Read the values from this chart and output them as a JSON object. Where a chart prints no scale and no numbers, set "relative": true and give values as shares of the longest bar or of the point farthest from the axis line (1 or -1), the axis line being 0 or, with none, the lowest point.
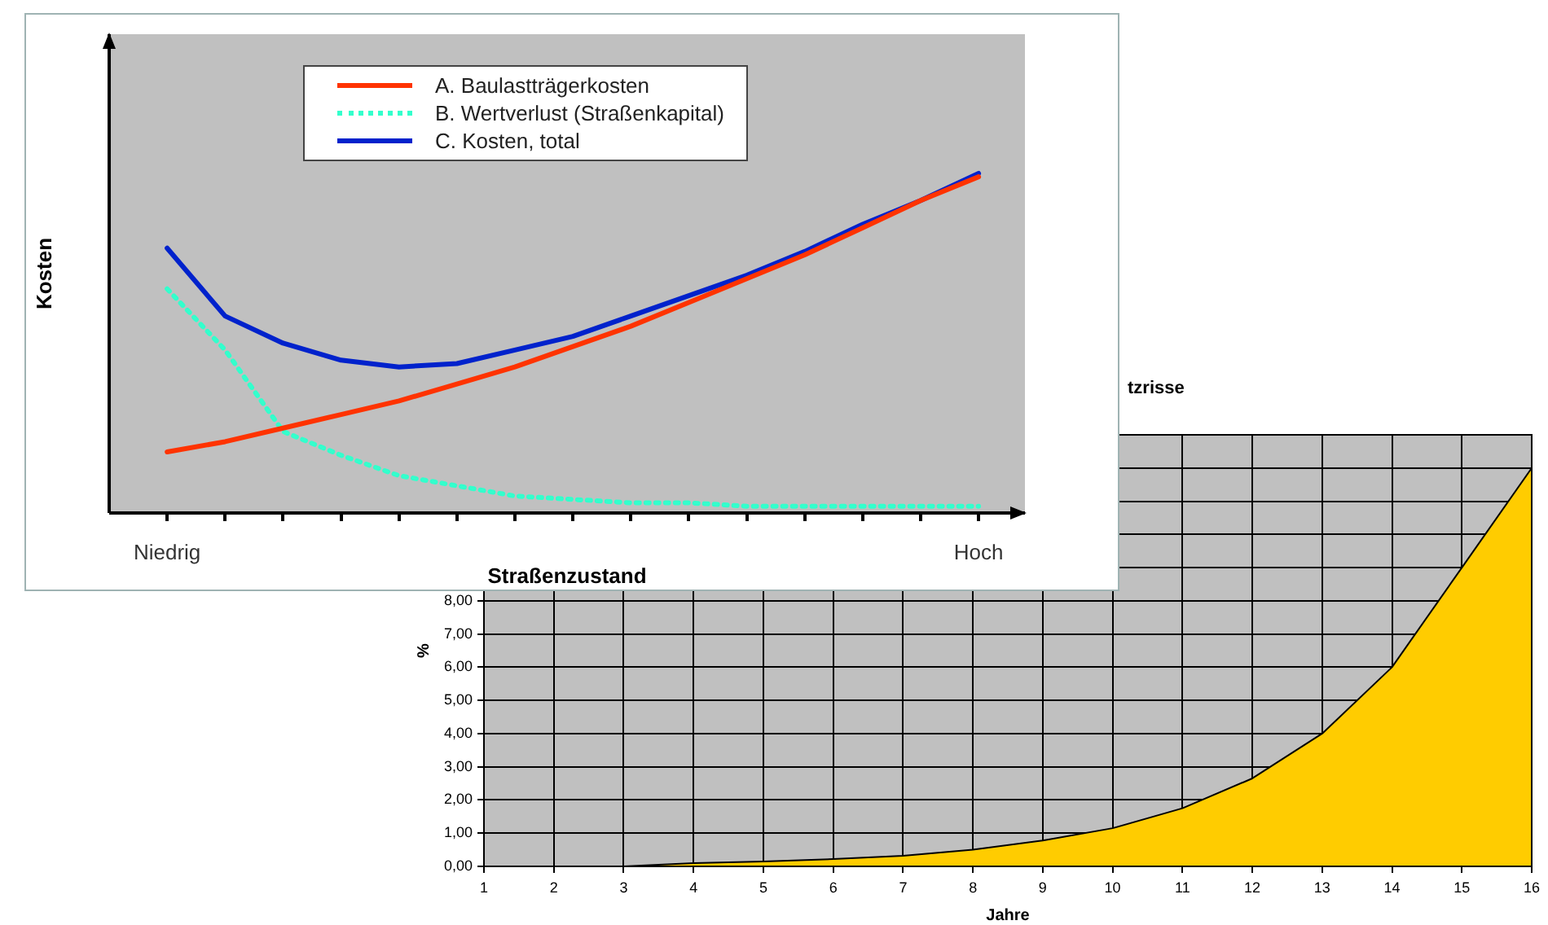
{
  "chart_data": [
    {
      "type": "line",
      "relative": true,
      "xlabel": "Straßenzustand",
      "ylabel": "Kosten",
      "legend": "top",
      "categories": [
        "Niedrig",
        null,
        null,
        null,
        null,
        null,
        null,
        null,
        null,
        null,
        null,
        null,
        null,
        null,
        "Hoch"
      ],
      "series": [
        {
          "name": "A. Baulastträgerkosten",
          "color": "#ff3300",
          "line_style": "solid",
          "values": [
            0.18,
            0.21,
            0.25,
            0.29,
            0.33,
            0.38,
            0.43,
            0.49,
            0.55,
            0.62,
            0.69,
            0.76,
            0.84,
            0.92,
            0.99
          ]
        },
        {
          "name": "B. Wertverlust (Straßenkapital)",
          "color": "#33ffcc",
          "line_style": "dotted",
          "values": [
            0.66,
            0.48,
            0.24,
            0.17,
            0.11,
            0.08,
            0.05,
            0.04,
            0.03,
            0.03,
            0.02,
            0.02,
            0.02,
            0.02,
            0.02
          ]
        },
        {
          "name": "C. Kosten, total",
          "color": "#0022cc",
          "line_style": "solid",
          "values": [
            0.78,
            0.58,
            0.5,
            0.45,
            0.43,
            0.44,
            0.48,
            0.52,
            0.58,
            0.64,
            0.7,
            0.77,
            0.85,
            0.92,
            1.0
          ]
        }
      ]
    },
    {
      "type": "area",
      "title": "tzrisse",
      "xlabel": "Jahre",
      "ylabel": "%",
      "grid": true,
      "color": "#ffcc00",
      "x": [
        1,
        2,
        3,
        4,
        5,
        6,
        7,
        8,
        9,
        10,
        11,
        12,
        13,
        14,
        15,
        16
      ],
      "values": [
        0,
        0,
        0,
        0.1,
        0.15,
        0.22,
        0.32,
        0.5,
        0.78,
        1.15,
        1.75,
        2.65,
        4.0,
        6.0,
        9.0,
        12.0
      ],
      "xlim": [
        1,
        16
      ],
      "xticks": [
        1,
        2,
        3,
        4,
        5,
        6,
        7,
        8,
        9,
        10,
        11,
        12,
        13,
        14,
        15,
        16
      ],
      "ylim": [
        0,
        13
      ],
      "yticks": [
        {
          "value": 0,
          "label": "0,00"
        },
        {
          "value": 1,
          "label": "1,00"
        },
        {
          "value": 2,
          "label": "2,00"
        },
        {
          "value": 3,
          "label": "3,00"
        },
        {
          "value": 4,
          "label": "4,00"
        },
        {
          "value": 5,
          "label": "5,00"
        },
        {
          "value": 6,
          "label": "6,00"
        },
        {
          "value": 7,
          "label": "7,00"
        },
        {
          "value": 8,
          "label": "8,00"
        },
        {
          "value": 9,
          "label": null
        },
        {
          "value": 10,
          "label": null
        },
        {
          "value": 11,
          "label": null
        },
        {
          "value": 12,
          "label": null
        },
        {
          "value": 13,
          "label": null
        }
      ]
    }
  ]
}
